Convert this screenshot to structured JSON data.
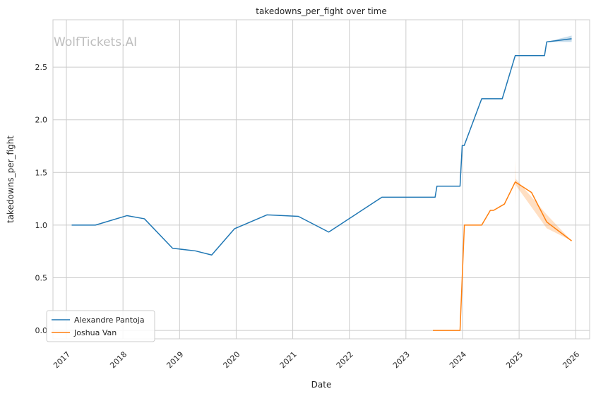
{
  "chart_data": {
    "type": "line",
    "title": "takedowns_per_fight over time",
    "xlabel": "Date",
    "ylabel": "takedowns_per_fight",
    "watermark": "WolfTickets.AI",
    "x_ticks": [
      "2017",
      "2018",
      "2019",
      "2020",
      "2021",
      "2022",
      "2023",
      "2024",
      "2025",
      "2026"
    ],
    "y_ticks": [
      "0.0",
      "0.5",
      "1.0",
      "1.5",
      "2.0",
      "2.5"
    ],
    "xlim": [
      "2016-10-06",
      "2026-04-01"
    ],
    "ylim": [
      -0.08,
      2.95
    ],
    "grid": true,
    "legend_position": "lower-left",
    "series": [
      {
        "name": "Alexandre Pantoja",
        "color": "#1f77b4",
        "points": [
          [
            "2017-02-04",
            1.0
          ],
          [
            "2017-07-07",
            1.0
          ],
          [
            "2018-01-27",
            1.09
          ],
          [
            "2018-05-19",
            1.06
          ],
          [
            "2018-11-17",
            0.78
          ],
          [
            "2019-04-13",
            0.755
          ],
          [
            "2019-07-27",
            0.716
          ],
          [
            "2019-12-21",
            0.965
          ],
          [
            "2020-07-18",
            1.097
          ],
          [
            "2021-02-06",
            1.083
          ],
          [
            "2021-08-21",
            0.934
          ],
          [
            "2022-07-30",
            1.265
          ],
          [
            "2023-07-08",
            1.265
          ],
          [
            "2023-07-20",
            1.37
          ],
          [
            "2023-12-16",
            1.37
          ],
          [
            "2023-12-30",
            1.756
          ],
          [
            "2024-01-12",
            1.756
          ],
          [
            "2024-05-04",
            2.2
          ],
          [
            "2024-09-14",
            2.2
          ],
          [
            "2024-12-07",
            2.61
          ],
          [
            "2025-06-14",
            2.61
          ],
          [
            "2025-06-28",
            2.74
          ],
          [
            "2025-12-06",
            2.77
          ]
        ],
        "band": [
          [
            "2025-06-28",
            2.74,
            2.74
          ],
          [
            "2025-12-06",
            2.74,
            2.8
          ]
        ]
      },
      {
        "name": "Joshua Van",
        "color": "#ff7f0e",
        "points": [
          [
            "2023-06-24",
            0.0
          ],
          [
            "2023-12-16",
            0.0
          ],
          [
            "2024-01-13",
            1.0
          ],
          [
            "2024-05-04",
            1.0
          ],
          [
            "2024-06-29",
            1.14
          ],
          [
            "2024-07-20",
            1.14
          ],
          [
            "2024-09-28",
            1.2
          ],
          [
            "2024-12-07",
            1.41
          ],
          [
            "2025-03-22",
            1.31
          ],
          [
            "2025-06-28",
            1.03
          ],
          [
            "2025-12-06",
            0.85
          ]
        ],
        "band": [
          [
            "2024-12-07",
            1.2,
            1.62
          ],
          [
            "2024-12-10",
            1.38,
            1.44
          ],
          [
            "2025-06-28",
            0.97,
            1.1
          ],
          [
            "2025-12-06",
            0.85,
            0.85
          ]
        ]
      }
    ]
  }
}
